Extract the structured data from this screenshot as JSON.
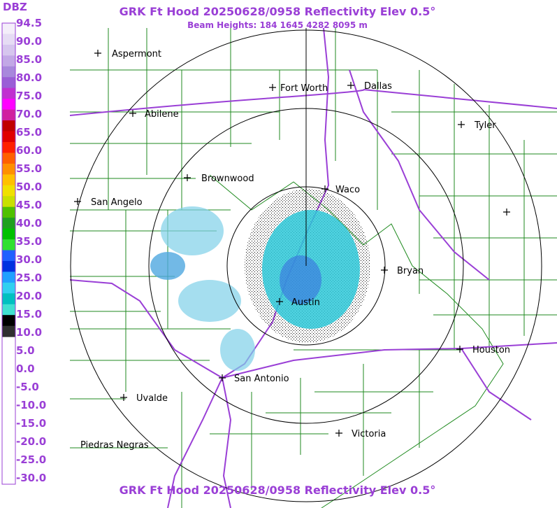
{
  "header": {
    "title": "GRK Ft Hood 20250628/0958 Reflectivity Elev 0.5°",
    "subtitle": "Beam Heights: 184 1645 4282 8095 m"
  },
  "footer": {
    "title": "GRK Ft Hood 20250628/0958 Reflectivity Elev 0.5°"
  },
  "legend": {
    "unit": "DBZ",
    "labels": [
      "94.5",
      "90.0",
      "85.0",
      "80.0",
      "75.0",
      "70.0",
      "65.0",
      "60.0",
      "55.0",
      "50.0",
      "45.0",
      "40.0",
      "35.0",
      "30.0",
      "25.0",
      "20.0",
      "15.0",
      "10.0",
      "5.0",
      "0.0",
      "-5.0",
      "-10.0",
      "-15.0",
      "-20.0",
      "-25.0",
      "-30.0"
    ]
  },
  "cities": [
    "Aspermont",
    "Fort Worth",
    "Dallas",
    "Abilene",
    "Tyler",
    "Brownwood",
    "Waco",
    "San Angelo",
    "Bryan",
    "Austin",
    "Houston",
    "San Antonio",
    "Uvalde",
    "Victoria",
    "Piedras Negras"
  ]
}
